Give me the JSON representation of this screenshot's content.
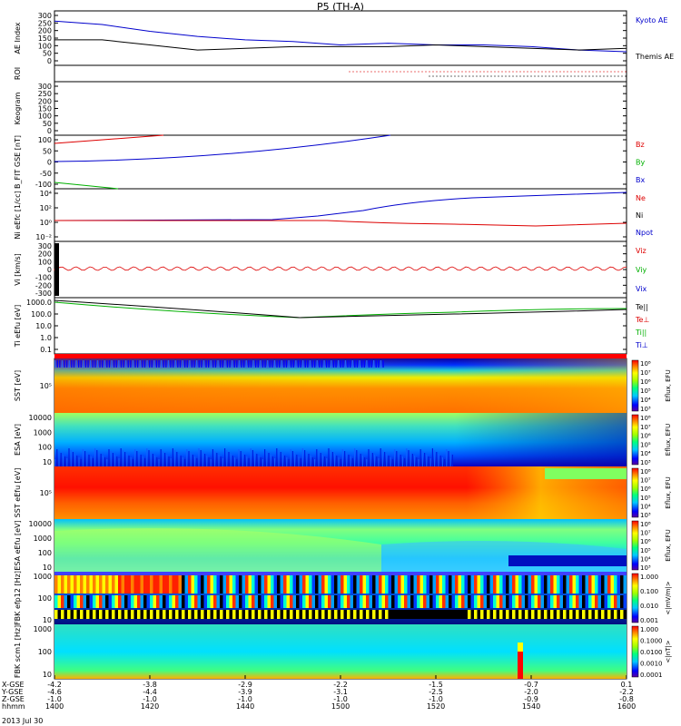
{
  "title": "P5 (TH-A)",
  "time_axis": {
    "rows": [
      {
        "label": "X-GSE",
        "values": [
          "-4.2",
          "-3.8",
          "-2.9",
          "-2.2",
          "-1.5",
          "-0.7",
          "0.1"
        ]
      },
      {
        "label": "Y-GSE",
        "values": [
          "-4.6",
          "-4.4",
          "-3.9",
          "-3.1",
          "-2.5",
          "-2.0",
          "-2.2"
        ]
      },
      {
        "label": "Z-GSE",
        "values": [
          "-1.0",
          "-1.0",
          "-1.0",
          "-1.0",
          "-1.0",
          "-0.9",
          "-0.8"
        ]
      },
      {
        "label": "hhmm",
        "values": [
          "1400",
          "1420",
          "1440",
          "1500",
          "1520",
          "1540",
          "1600"
        ]
      }
    ],
    "date": "2013 Jul 30"
  },
  "colors": {
    "red": "#dd0000",
    "green": "#00b000",
    "blue": "#0000cc",
    "black": "#000000"
  },
  "chart_data": [
    {
      "type": "line",
      "ylabel": "AE Index",
      "yticks": [
        "300",
        "250",
        "200",
        "150",
        "100",
        "50",
        "0"
      ],
      "ylim": [
        0,
        320
      ],
      "x": [
        1400,
        1410,
        1420,
        1430,
        1440,
        1450,
        1500,
        1510,
        1520,
        1530,
        1540,
        1550,
        1600
      ],
      "series": [
        {
          "name": "Kyoto AE",
          "color": "#0000cc",
          "values": [
            260,
            240,
            200,
            170,
            150,
            140,
            120,
            130,
            120,
            120,
            110,
            90,
            80
          ]
        },
        {
          "name": "Themis AE",
          "color": "#000000",
          "values": [
            150,
            150,
            120,
            90,
            100,
            110,
            110,
            110,
            120,
            110,
            100,
            90,
            100
          ]
        }
      ]
    },
    {
      "type": "scatter",
      "ylabel": "ROI"
    },
    {
      "type": "line",
      "ylabel": "Keogram",
      "yticks": [
        "300",
        "250",
        "200",
        "150",
        "100",
        "50",
        "0"
      ]
    },
    {
      "type": "line",
      "ylabel": "B_FIT GSE [nT]",
      "yticks": [
        "100",
        "50",
        "0",
        "-50",
        "-100"
      ],
      "ylim": [
        -110,
        110
      ],
      "series": [
        {
          "name": "Bz",
          "color": "#dd0000"
        },
        {
          "name": "By",
          "color": "#00b000"
        },
        {
          "name": "Bx",
          "color": "#0000cc"
        }
      ]
    },
    {
      "type": "line",
      "ylabel": "Ni eEfc [1/cc]",
      "yticks": [
        "10⁴",
        "10²",
        "10⁰",
        "10⁻²"
      ],
      "series": [
        {
          "name": "Ne",
          "color": "#dd0000"
        },
        {
          "name": "Ni",
          "color": "#000000"
        },
        {
          "name": "Npot",
          "color": "#0000cc"
        }
      ]
    },
    {
      "type": "line",
      "ylabel": "Vi [km/s]",
      "yticks": [
        "300",
        "200",
        "100",
        "0",
        "-100",
        "-200",
        "-300"
      ],
      "series": [
        {
          "name": "Viz",
          "color": "#dd0000"
        },
        {
          "name": "Viy",
          "color": "#00b000"
        },
        {
          "name": "Vix",
          "color": "#0000cc"
        }
      ]
    },
    {
      "type": "line",
      "ylabel": "Ti eEfu [eV]",
      "yticks": [
        "1000.0",
        "100.0",
        "10.0",
        "1.0",
        "0.1"
      ],
      "series": [
        {
          "name": "Te||",
          "color": "#000000"
        },
        {
          "name": "Te⊥",
          "color": "#dd0000"
        },
        {
          "name": "Ti||",
          "color": "#00b000"
        },
        {
          "name": "Ti⊥",
          "color": "#0000cc"
        }
      ]
    },
    {
      "type": "heatmap",
      "ylabel": "SST [eV]",
      "yticks": [
        "10⁵"
      ],
      "colorbar_label": "Eflux, EFU",
      "colorbar_ticks": [
        "10⁸",
        "10⁷",
        "10⁶",
        "10⁵",
        "10⁴",
        "10³"
      ]
    },
    {
      "type": "heatmap",
      "ylabel": "ESA [eV]",
      "yticks": [
        "10000",
        "1000",
        "100",
        "10"
      ],
      "colorbar_label": "Eflux, EFU",
      "colorbar_ticks": [
        "10⁸",
        "10⁷",
        "10⁶",
        "10⁵",
        "10⁴",
        "10³"
      ]
    },
    {
      "type": "heatmap",
      "ylabel": "SST eEfu [eV]",
      "yticks": [
        "10⁵"
      ],
      "colorbar_label": "Eflux, EFU",
      "colorbar_ticks": [
        "10⁸",
        "10⁷",
        "10⁶",
        "10⁵",
        "10⁴",
        "10³"
      ]
    },
    {
      "type": "heatmap",
      "ylabel": "ESA eEfu [eV]",
      "yticks": [
        "10000",
        "1000",
        "100",
        "10"
      ],
      "colorbar_label": "Eflux, EFU",
      "colorbar_ticks": [
        "10⁸",
        "10⁷",
        "10⁶",
        "10⁵",
        "10⁴",
        "10³"
      ]
    },
    {
      "type": "heatmap",
      "ylabel": "FBK efp12 [Hz]",
      "yticks": [
        "1000",
        "100",
        "10"
      ],
      "colorbar_label": "<|mV/m|>",
      "colorbar_ticks": [
        "1.000",
        "0.100",
        "0.010",
        "0.001"
      ]
    },
    {
      "type": "heatmap",
      "ylabel": "FBK scm1 [Hz]",
      "yticks": [
        "1000",
        "100",
        "10"
      ],
      "colorbar_label": "<|nT|>",
      "colorbar_ticks": [
        "1.000",
        "0.1000",
        "0.0100",
        "0.0010",
        "0.0001"
      ]
    }
  ]
}
